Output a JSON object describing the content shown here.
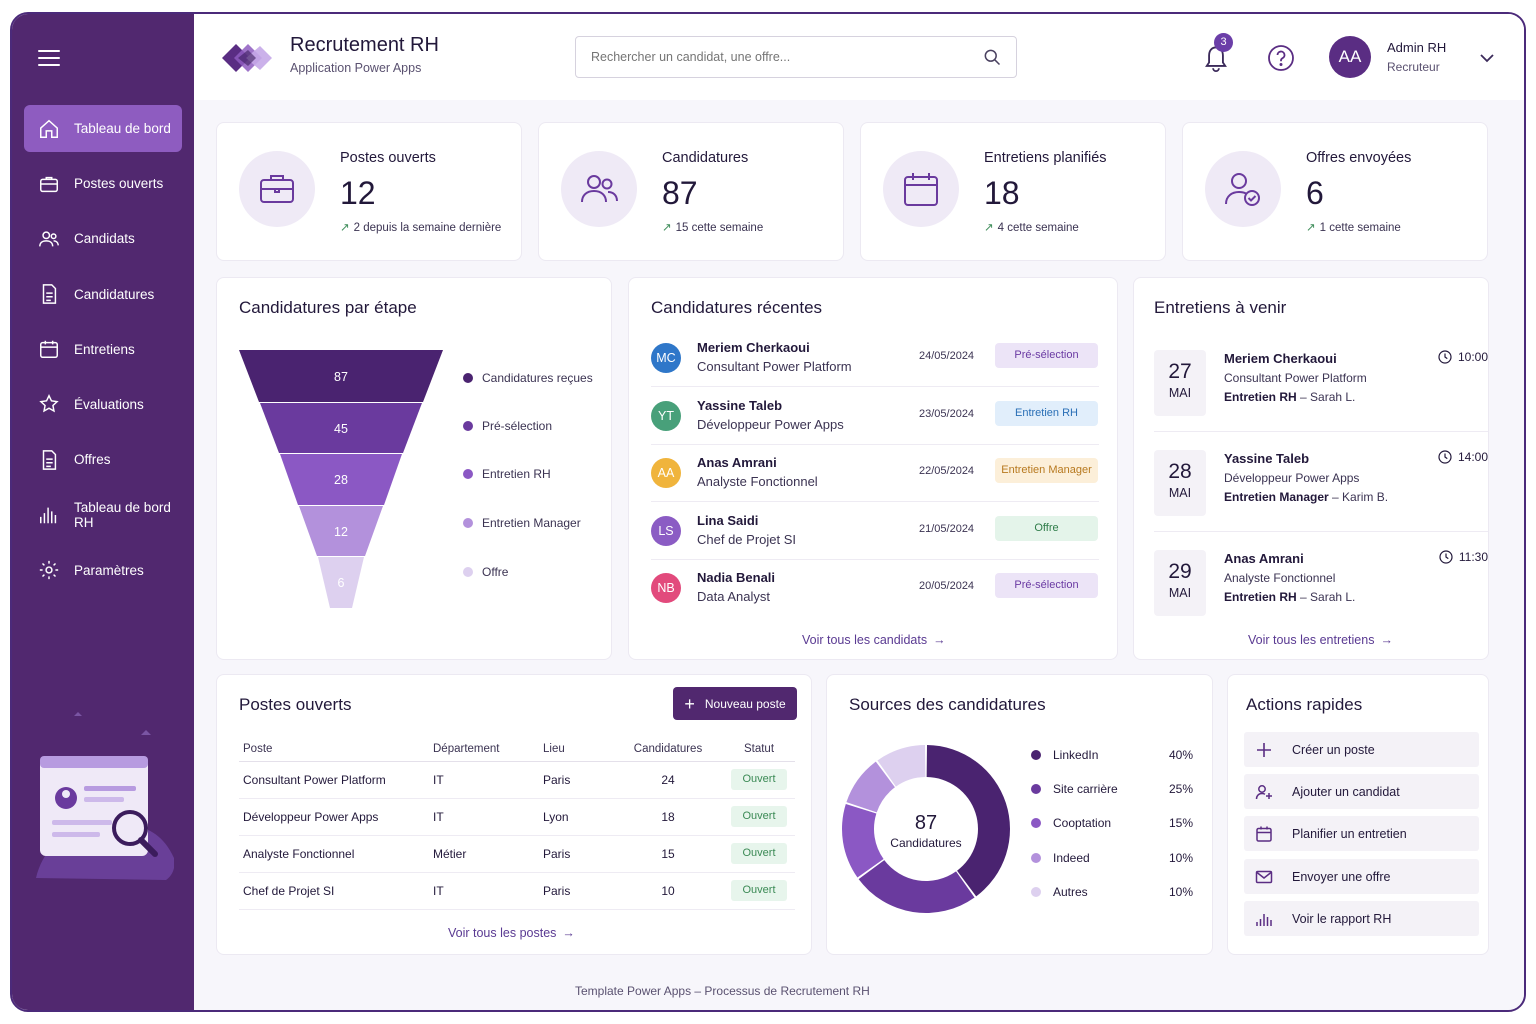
{
  "app": {
    "title": "Recrutement RH",
    "subtitle": "Application Power Apps"
  },
  "search": {
    "placeholder": "Rechercher un candidat, une offre..."
  },
  "notifications": {
    "count": "3"
  },
  "user": {
    "initials": "AA",
    "name": "Admin RH",
    "role": "Recruteur"
  },
  "sidebar": {
    "items": [
      {
        "label": "Tableau de bord",
        "icon": "home-icon",
        "active": true
      },
      {
        "label": "Postes ouverts",
        "icon": "briefcase-icon"
      },
      {
        "label": "Candidats",
        "icon": "users-icon"
      },
      {
        "label": "Candidatures",
        "icon": "document-icon"
      },
      {
        "label": "Entretiens",
        "icon": "calendar-icon"
      },
      {
        "label": "Évaluations",
        "icon": "star-icon"
      },
      {
        "label": "Offres",
        "icon": "document-icon"
      },
      {
        "label": "Tableau de bord RH",
        "icon": "bar-chart-icon"
      },
      {
        "label": "Paramètres",
        "icon": "gear-icon"
      }
    ]
  },
  "kpis": [
    {
      "label": "Postes ouverts",
      "value": "12",
      "delta": "2 depuis la semaine dernière",
      "icon": "briefcase-icon"
    },
    {
      "label": "Candidatures",
      "value": "87",
      "delta": "15 cette semaine",
      "icon": "users-icon"
    },
    {
      "label": "Entretiens planifiés",
      "value": "18",
      "delta": "4 cette semaine",
      "icon": "calendar-icon"
    },
    {
      "label": "Offres envoyées",
      "value": "6",
      "delta": "1 cette semaine",
      "icon": "user-check-icon"
    }
  ],
  "funnel": {
    "title": "Candidatures par étape",
    "stages": [
      {
        "label": "Candidatures reçues",
        "value": "87",
        "color": "#4a2370"
      },
      {
        "label": "Pré-sélection",
        "value": "45",
        "color": "#6a3a9e"
      },
      {
        "label": "Entretien RH",
        "value": "28",
        "color": "#8b58c4"
      },
      {
        "label": "Entretien Manager",
        "value": "12",
        "color": "#b391dc"
      },
      {
        "label": "Offre",
        "value": "6",
        "color": "#ddd0ef"
      }
    ]
  },
  "recent": {
    "title": "Candidatures récentes",
    "link": "Voir tous les candidats",
    "rows": [
      {
        "initials": "MC",
        "name": "Meriem Cherkaoui",
        "role": "Consultant Power Platform",
        "date": "24/05/2024",
        "status": "Pré-sélection",
        "avatar_color": "#2f77c9",
        "status_bg": "#ece4f7",
        "status_fg": "#6a3aa3"
      },
      {
        "initials": "YT",
        "name": "Yassine Taleb",
        "role": "Développeur Power Apps",
        "date": "23/05/2024",
        "status": "Entretien RH",
        "avatar_color": "#48a07a",
        "status_bg": "#e1eefb",
        "status_fg": "#2a6fb6"
      },
      {
        "initials": "AA",
        "name": "Anas Amrani",
        "role": "Analyste Fonctionnel",
        "date": "22/05/2024",
        "status": "Entretien Manager",
        "avatar_color": "#f0b43c",
        "status_bg": "#fcefd9",
        "status_fg": "#b7791f"
      },
      {
        "initials": "LS",
        "name": "Lina Saidi",
        "role": "Chef de Projet SI",
        "date": "21/05/2024",
        "status": "Offre",
        "avatar_color": "#8b5cc4",
        "status_bg": "#e4f4ea",
        "status_fg": "#2f7d4a"
      },
      {
        "initials": "NB",
        "name": "Nadia Benali",
        "role": "Data Analyst",
        "date": "20/05/2024",
        "status": "Pré-sélection",
        "avatar_color": "#e24a7c",
        "status_bg": "#ece4f7",
        "status_fg": "#6a3aa3"
      }
    ]
  },
  "interviews": {
    "title": "Entretiens à venir",
    "link": "Voir tous les entretiens",
    "rows": [
      {
        "day": "27",
        "month": "MAI",
        "name": "Meriem Cherkaoui",
        "role": "Consultant Power Platform",
        "type": "Entretien RH",
        "with": " – Sarah L.",
        "time": "10:00"
      },
      {
        "day": "28",
        "month": "MAI",
        "name": "Yassine Taleb",
        "role": "Développeur Power Apps",
        "type": "Entretien Manager",
        "with": " – Karim B.",
        "time": "14:00"
      },
      {
        "day": "29",
        "month": "MAI",
        "name": "Anas Amrani",
        "role": "Analyste Fonctionnel",
        "type": "Entretien RH",
        "with": " – Sarah L.",
        "time": "11:30"
      }
    ]
  },
  "postes": {
    "title": "Postes ouverts",
    "new_button": "Nouveau poste",
    "columns": [
      "Poste",
      "Département",
      "Lieu",
      "Candidatures",
      "Statut"
    ],
    "rows": [
      {
        "poste": "Consultant Power Platform",
        "dept": "IT",
        "lieu": "Paris",
        "count": "24",
        "statut": "Ouvert"
      },
      {
        "poste": "Développeur Power Apps",
        "dept": "IT",
        "lieu": "Lyon",
        "count": "18",
        "statut": "Ouvert"
      },
      {
        "poste": "Analyste Fonctionnel",
        "dept": "Métier",
        "lieu": "Paris",
        "count": "15",
        "statut": "Ouvert"
      },
      {
        "poste": "Chef de Projet SI",
        "dept": "IT",
        "lieu": "Paris",
        "count": "10",
        "statut": "Ouvert"
      }
    ],
    "link": "Voir tous les postes"
  },
  "sources": {
    "title": "Sources des candidatures",
    "total": "87",
    "total_label": "Candidatures",
    "items": [
      {
        "label": "LinkedIn",
        "pct": "40%",
        "value": 40,
        "color": "#4a2370"
      },
      {
        "label": "Site carrière",
        "pct": "25%",
        "value": 25,
        "color": "#6a3a9e"
      },
      {
        "label": "Cooptation",
        "pct": "15%",
        "value": 15,
        "color": "#8b58c4"
      },
      {
        "label": "Indeed",
        "pct": "10%",
        "value": 10,
        "color": "#b391dc"
      },
      {
        "label": "Autres",
        "pct": "10%",
        "value": 10,
        "color": "#ddd0ef"
      }
    ]
  },
  "quick_actions": {
    "title": "Actions rapides",
    "items": [
      {
        "label": "Créer un poste",
        "icon": "plus-icon"
      },
      {
        "label": "Ajouter un candidat",
        "icon": "user-plus-icon"
      },
      {
        "label": "Planifier un entretien",
        "icon": "calendar-icon"
      },
      {
        "label": "Envoyer une offre",
        "icon": "mail-icon"
      },
      {
        "label": "Voir le rapport RH",
        "icon": "bar-chart-icon"
      }
    ]
  },
  "footer": "Template Power Apps – Processus de Recrutement RH",
  "colors": {
    "sidebar": "#51286f",
    "accent": "#8e5cc0",
    "positive": "#3e8d5a"
  }
}
